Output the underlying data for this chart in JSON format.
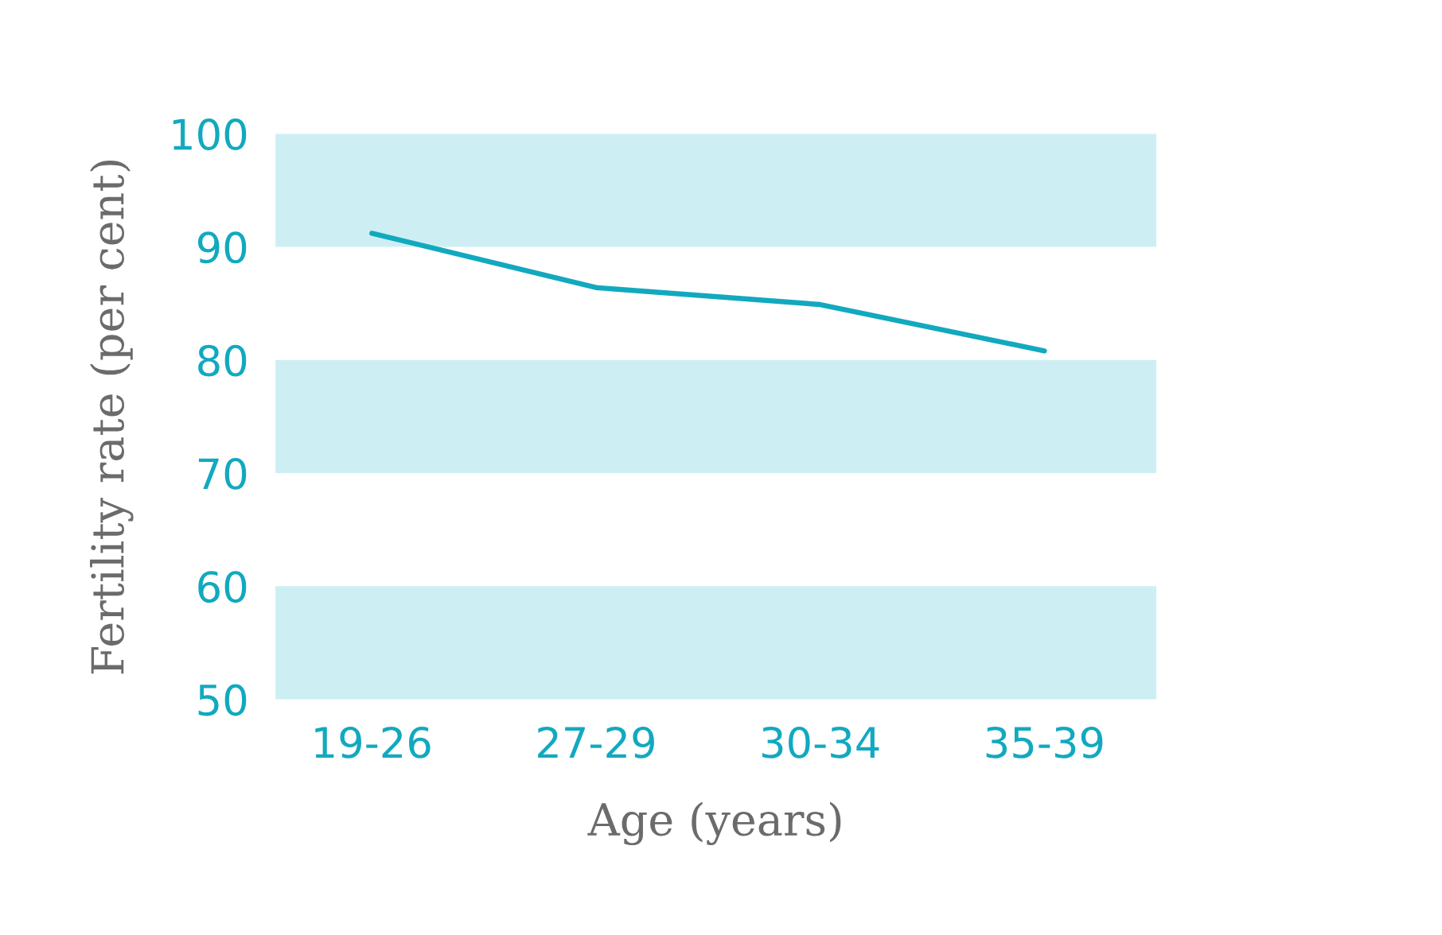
{
  "chart_data": {
    "type": "line",
    "xlabel": "Age (years)",
    "ylabel": "Fertility rate (per cent)",
    "categories": [
      "19-26",
      "27-29",
      "30-34",
      "35-39"
    ],
    "series": [
      {
        "color": "#12a9bf",
        "values": [
          91.2,
          86.4,
          84.9,
          80.8
        ]
      }
    ],
    "ylim": [
      50,
      100
    ],
    "yticks": [
      50,
      60,
      70,
      80,
      90,
      100
    ],
    "bands": [
      {
        "axis": "y",
        "from": 50,
        "to": 60,
        "color": "#cdeff3"
      },
      {
        "axis": "y",
        "from": 70,
        "to": 80,
        "color": "#cdeff3"
      },
      {
        "axis": "y",
        "from": 90,
        "to": 100,
        "color": "#cdeff3"
      }
    ],
    "line_style": "solid"
  }
}
